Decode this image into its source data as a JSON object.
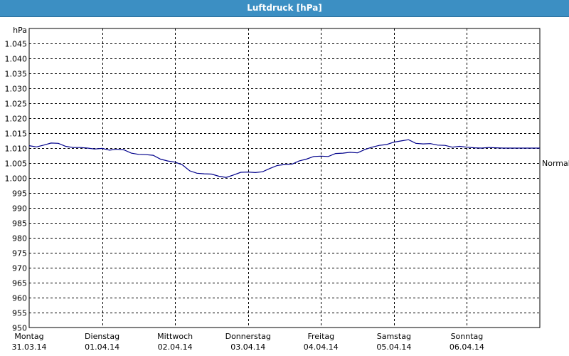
{
  "window": {
    "title": "Luftdruck [hPa]"
  },
  "chart_data": {
    "type": "line",
    "title": "Luftdruck [hPa]",
    "ylabel": "hPa",
    "ylim": [
      950,
      1050
    ],
    "yticks": [
      "1.045",
      "1.040",
      "1.035",
      "1.030",
      "1.025",
      "1.020",
      "1.015",
      "1.010",
      "1.005",
      "1.000",
      "995",
      "990",
      "985",
      "980",
      "975",
      "970",
      "965",
      "960",
      "955",
      "950"
    ],
    "ytick_values": [
      1045,
      1040,
      1035,
      1030,
      1025,
      1020,
      1015,
      1010,
      1005,
      1000,
      995,
      990,
      985,
      980,
      975,
      970,
      965,
      960,
      955,
      950
    ],
    "xticks": [
      {
        "day": "Montag",
        "date": "31.03.14"
      },
      {
        "day": "Dienstag",
        "date": "01.04.14"
      },
      {
        "day": "Mittwoch",
        "date": "02.04.14"
      },
      {
        "day": "Donnerstag",
        "date": "03.04.14"
      },
      {
        "day": "Freitag",
        "date": "04.04.14"
      },
      {
        "day": "Samstag",
        "date": "05.04.14"
      },
      {
        "day": "Sonntag",
        "date": "06.04.14"
      }
    ],
    "xlim": [
      0,
      7
    ],
    "grid": true,
    "reference_label": "Normal",
    "reference_value": 1005,
    "line_color": "#00008b",
    "series": [
      {
        "x": [
          0,
          0.1,
          0.2,
          0.3,
          0.4,
          0.5,
          0.6,
          0.7,
          0.8,
          0.9,
          1.0,
          1.1,
          1.2,
          1.3,
          1.4,
          1.5,
          1.6,
          1.7,
          1.8,
          1.9,
          2.0,
          2.1,
          2.2,
          2.3,
          2.4,
          2.5,
          2.6,
          2.7,
          2.8,
          2.9,
          3.0,
          3.1,
          3.2,
          3.3,
          3.4,
          3.5,
          3.6,
          3.7,
          3.8,
          3.9,
          4.0,
          4.1,
          4.2,
          4.3,
          4.4,
          4.5,
          4.6,
          4.7,
          4.8,
          4.9,
          5.0,
          5.1,
          5.2,
          5.3,
          5.4,
          5.5,
          5.6,
          5.7,
          5.8,
          5.9,
          6.0,
          6.1,
          6.2,
          6.3,
          6.4,
          6.5,
          6.6,
          6.7,
          6.8,
          6.9,
          7.0
        ],
        "values": [
          1010.8,
          1010.4,
          1011.0,
          1011.7,
          1011.6,
          1010.6,
          1010.2,
          1010.2,
          1010.0,
          1009.7,
          1009.9,
          1009.3,
          1009.6,
          1009.4,
          1008.3,
          1007.9,
          1007.8,
          1007.6,
          1006.3,
          1005.7,
          1005.3,
          1004.4,
          1002.4,
          1001.6,
          1001.4,
          1001.3,
          1000.6,
          1000.2,
          1001.0,
          1001.9,
          1002.0,
          1001.8,
          1002.1,
          1003.2,
          1004.2,
          1004.5,
          1004.6,
          1005.7,
          1006.3,
          1007.2,
          1007.3,
          1007.2,
          1008.2,
          1008.3,
          1008.6,
          1008.4,
          1009.5,
          1010.3,
          1010.9,
          1011.2,
          1012.0,
          1012.4,
          1012.8,
          1011.6,
          1011.4,
          1011.5,
          1011.0,
          1010.9,
          1010.3,
          1010.6,
          1010.3,
          1010.1,
          1010.0,
          1010.2,
          1010.1,
          1010.0,
          1010.0,
          1010.0,
          1010.0,
          1010.0,
          1010.0
        ]
      }
    ]
  }
}
